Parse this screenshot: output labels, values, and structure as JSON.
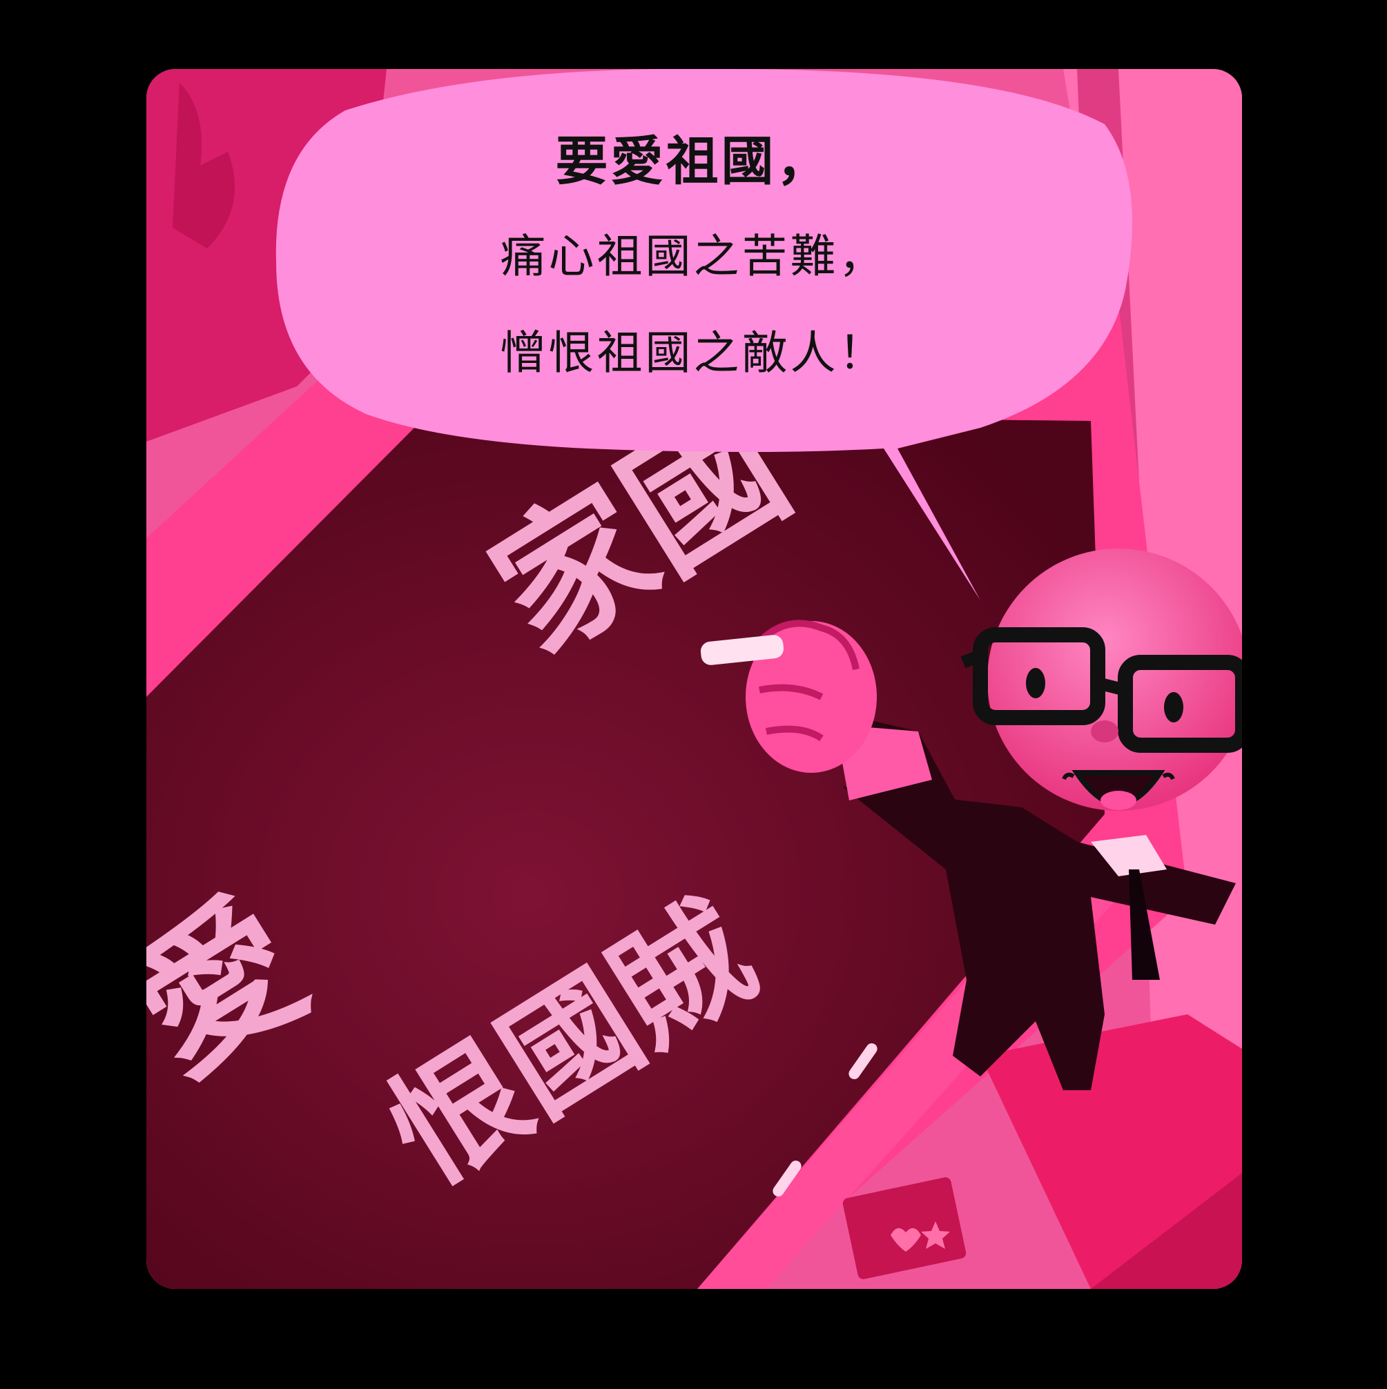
{
  "speech_bubble": {
    "line1": "要愛祖國，",
    "line2": "痛心祖國之苦難，",
    "line3": "憎恨祖國之敵人！"
  },
  "chalkboard": {
    "column_right": "家國",
    "column_middle": "恨國賊",
    "column_left": "愛"
  },
  "colors": {
    "frame": "#000000",
    "panel_pink": "#f0559a",
    "bubble": "#ff8edc",
    "board": "#6a0a2a",
    "chalk": "#f4a6cf",
    "character_head": "#ff5aa8",
    "suit": "#2a0410"
  }
}
